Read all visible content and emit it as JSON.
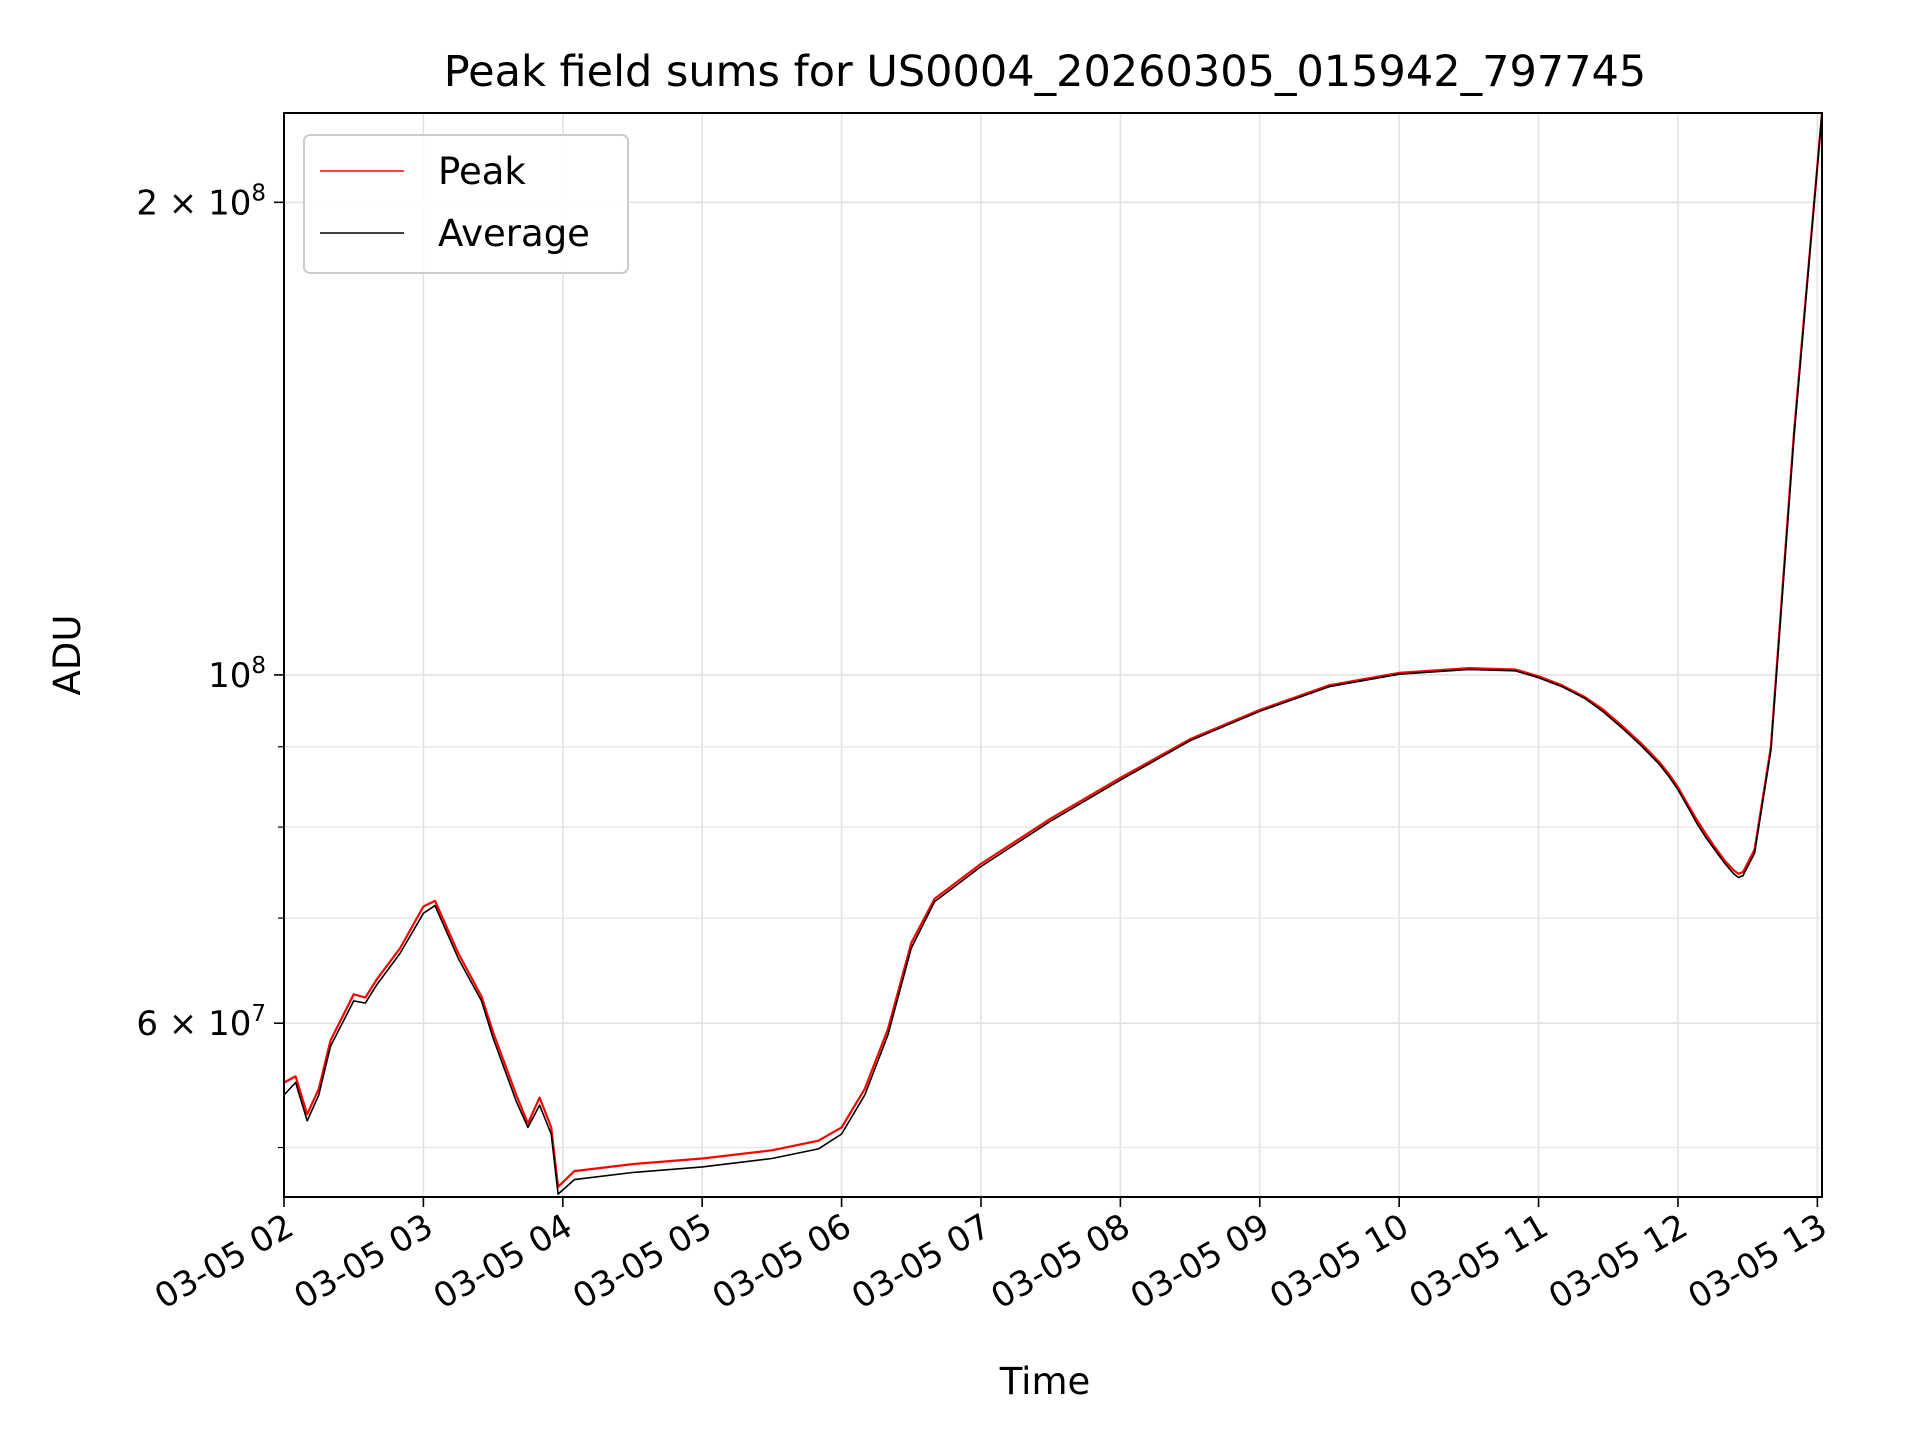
{
  "chart_data": {
    "type": "line",
    "title": "Peak field sums for US0004_20260305_015942_797745",
    "xlabel": "Time",
    "ylabel": "ADU",
    "y_scale": "log",
    "ylim": [
      46500000,
      228000000
    ],
    "xlim": [
      "2026-03-05 02:00",
      "2026-03-05 13:02"
    ],
    "x_ticks": [
      {
        "value": "2026-03-05 02:00",
        "label": "03-05 02"
      },
      {
        "value": "2026-03-05 03:00",
        "label": "03-05 03"
      },
      {
        "value": "2026-03-05 04:00",
        "label": "03-05 04"
      },
      {
        "value": "2026-03-05 05:00",
        "label": "03-05 05"
      },
      {
        "value": "2026-03-05 06:00",
        "label": "03-05 06"
      },
      {
        "value": "2026-03-05 07:00",
        "label": "03-05 07"
      },
      {
        "value": "2026-03-05 08:00",
        "label": "03-05 08"
      },
      {
        "value": "2026-03-05 09:00",
        "label": "03-05 09"
      },
      {
        "value": "2026-03-05 10:00",
        "label": "03-05 10"
      },
      {
        "value": "2026-03-05 11:00",
        "label": "03-05 11"
      },
      {
        "value": "2026-03-05 12:00",
        "label": "03-05 12"
      },
      {
        "value": "2026-03-05 13:00",
        "label": "03-05 13"
      }
    ],
    "y_major_ticks": [
      {
        "value": 60000000,
        "mantissa": "6",
        "base": "10",
        "exp": "7"
      },
      {
        "value": 100000000,
        "mantissa": "",
        "base": "10",
        "exp": "8"
      },
      {
        "value": 200000000,
        "mantissa": "2",
        "base": "10",
        "exp": "8"
      }
    ],
    "y_minor_gridlines": [
      50000000,
      70000000,
      80000000,
      90000000
    ],
    "grid": true,
    "legend": {
      "placement": "top-left"
    },
    "series": [
      {
        "name": "Peak",
        "color": "#ff0000",
        "x": [
          "2026-03-05 02:00",
          "2026-03-05 02:05",
          "2026-03-05 02:10",
          "2026-03-05 02:15",
          "2026-03-05 02:20",
          "2026-03-05 02:30",
          "2026-03-05 02:35",
          "2026-03-05 02:40",
          "2026-03-05 02:50",
          "2026-03-05 03:00",
          "2026-03-05 03:05",
          "2026-03-05 03:15",
          "2026-03-05 03:25",
          "2026-03-05 03:30",
          "2026-03-05 03:40",
          "2026-03-05 03:45",
          "2026-03-05 03:50",
          "2026-03-05 03:55",
          "2026-03-05 03:58",
          "2026-03-05 04:05",
          "2026-03-05 04:30",
          "2026-03-05 05:00",
          "2026-03-05 05:30",
          "2026-03-05 05:50",
          "2026-03-05 06:00",
          "2026-03-05 06:10",
          "2026-03-05 06:20",
          "2026-03-05 06:30",
          "2026-03-05 06:40",
          "2026-03-05 07:00",
          "2026-03-05 07:30",
          "2026-03-05 08:00",
          "2026-03-05 08:30",
          "2026-03-05 09:00",
          "2026-03-05 09:30",
          "2026-03-05 10:00",
          "2026-03-05 10:30",
          "2026-03-05 10:50",
          "2026-03-05 11:00",
          "2026-03-05 11:10",
          "2026-03-05 11:20",
          "2026-03-05 11:28",
          "2026-03-05 11:36",
          "2026-03-05 11:44",
          "2026-03-05 11:52",
          "2026-03-05 11:56",
          "2026-03-05 12:00",
          "2026-03-05 12:04",
          "2026-03-05 12:08",
          "2026-03-05 12:12",
          "2026-03-05 12:15",
          "2026-03-05 12:20",
          "2026-03-05 12:24",
          "2026-03-05 12:26",
          "2026-03-05 12:28",
          "2026-03-05 12:33",
          "2026-03-05 12:40",
          "2026-03-05 12:50",
          "2026-03-05 13:02"
        ],
        "y": [
          55000000,
          55500000,
          52500000,
          54500000,
          58500000,
          62600000,
          62300000,
          64000000,
          67000000,
          71200000,
          71800000,
          66500000,
          62400000,
          59200000,
          54000000,
          51800000,
          53800000,
          51500000,
          47200000,
          48300000,
          48800000,
          49200000,
          49800000,
          50500000,
          51500000,
          54500000,
          59500000,
          67500000,
          72000000,
          75800000,
          81000000,
          86000000,
          91000000,
          95000000,
          98500000,
          100300000,
          101000000,
          100800000,
          99800000,
          98500000,
          96800000,
          95000000,
          92800000,
          90500000,
          88000000,
          86500000,
          84800000,
          82800000,
          80900000,
          79200000,
          78000000,
          76200000,
          75100000,
          74700000,
          74900000,
          77400000,
          90000000,
          143000000,
          228000000
        ]
      },
      {
        "name": "Average",
        "color": "#000000",
        "x": [
          "2026-03-05 02:00",
          "2026-03-05 02:05",
          "2026-03-05 02:10",
          "2026-03-05 02:15",
          "2026-03-05 02:20",
          "2026-03-05 02:30",
          "2026-03-05 02:35",
          "2026-03-05 02:40",
          "2026-03-05 02:50",
          "2026-03-05 03:00",
          "2026-03-05 03:05",
          "2026-03-05 03:15",
          "2026-03-05 03:25",
          "2026-03-05 03:30",
          "2026-03-05 03:40",
          "2026-03-05 03:45",
          "2026-03-05 03:50",
          "2026-03-05 03:55",
          "2026-03-05 03:58",
          "2026-03-05 04:05",
          "2026-03-05 04:30",
          "2026-03-05 05:00",
          "2026-03-05 05:30",
          "2026-03-05 05:50",
          "2026-03-05 06:00",
          "2026-03-05 06:10",
          "2026-03-05 06:20",
          "2026-03-05 06:30",
          "2026-03-05 06:40",
          "2026-03-05 07:00",
          "2026-03-05 07:30",
          "2026-03-05 08:00",
          "2026-03-05 08:30",
          "2026-03-05 09:00",
          "2026-03-05 09:30",
          "2026-03-05 10:00",
          "2026-03-05 10:30",
          "2026-03-05 10:50",
          "2026-03-05 11:00",
          "2026-03-05 11:10",
          "2026-03-05 11:20",
          "2026-03-05 11:28",
          "2026-03-05 11:36",
          "2026-03-05 11:44",
          "2026-03-05 11:52",
          "2026-03-05 11:56",
          "2026-03-05 12:00",
          "2026-03-05 12:04",
          "2026-03-05 12:08",
          "2026-03-05 12:12",
          "2026-03-05 12:15",
          "2026-03-05 12:20",
          "2026-03-05 12:24",
          "2026-03-05 12:26",
          "2026-03-05 12:28",
          "2026-03-05 12:33",
          "2026-03-05 12:40",
          "2026-03-05 12:50",
          "2026-03-05 13:02"
        ],
        "y": [
          54000000,
          55000000,
          52000000,
          54000000,
          58000000,
          62000000,
          61800000,
          63500000,
          66500000,
          70500000,
          71300000,
          66000000,
          62000000,
          58700000,
          53500000,
          51500000,
          53200000,
          51000000,
          46700000,
          47700000,
          48200000,
          48600000,
          49200000,
          49900000,
          51000000,
          54000000,
          59000000,
          67000000,
          71700000,
          75500000,
          80700000,
          85700000,
          90800000,
          94800000,
          98300000,
          100100000,
          100800000,
          100600000,
          99600000,
          98300000,
          96600000,
          94700000,
          92500000,
          90200000,
          87700000,
          86200000,
          84500000,
          82500000,
          80500000,
          78800000,
          77700000,
          75900000,
          74700000,
          74300000,
          74500000,
          77000000,
          89500000,
          142000000,
          228000000
        ]
      }
    ]
  }
}
